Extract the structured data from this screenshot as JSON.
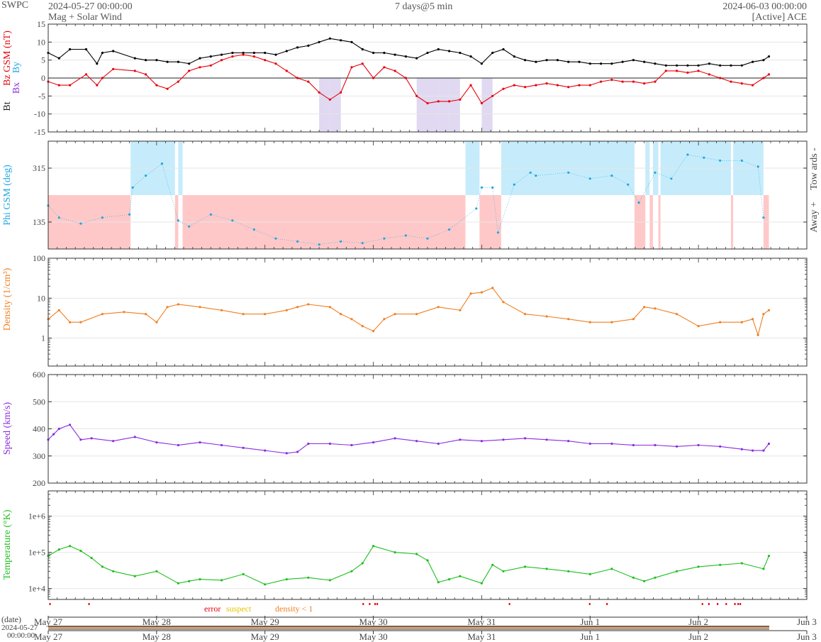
{
  "header": {
    "org": "SWPC",
    "start": "2024-05-27 00:00:00",
    "subtitle": "Mag + Solar Wind",
    "window": "7 days@5 min",
    "end": "2024-06-03 00:00:00",
    "source": "[Active] ACE"
  },
  "colors": {
    "bt": "#000000",
    "bz": "#e8000b",
    "by": "#1ea7e1",
    "bx": "#8a2be2",
    "phi": "#1ea7e1",
    "towards_fill": "#c6ecfb",
    "away_fill": "#ffc8c8",
    "bz_neg_fill": "#ddd5f0",
    "density": "#f07f22",
    "speed": "#8a2be2",
    "temperature": "#1fbf1f",
    "error": "#e8000b",
    "suspect": "#e6c200",
    "density_flag": "#f07f22"
  },
  "flags": {
    "error_label": "error",
    "suspect_label": "suspect",
    "density_label": "density < 1",
    "error_days": [
      0.01,
      0.37,
      2.9,
      2.96,
      3.01,
      3.03,
      4.25,
      4.99,
      5.15,
      6.03,
      6.09,
      6.17,
      6.25,
      6.33,
      6.36,
      6.38
    ]
  },
  "timeline": {
    "label": "(date)",
    "start_date": "2024-05-27",
    "start_time": "00:00:00"
  },
  "chart_data": [
    {
      "type": "line",
      "panel": "mag",
      "ylabel_parts": [
        "Bt",
        "Bz GSM (nT)"
      ],
      "legend": [
        "Bx",
        "By"
      ],
      "ylim": [
        -15,
        15
      ],
      "yticks": [
        -15,
        -10,
        -5,
        0,
        5,
        10,
        15
      ],
      "xlim_days": [
        0,
        7
      ],
      "x_days": [
        0,
        0.1,
        0.2,
        0.35,
        0.45,
        0.5,
        0.6,
        0.8,
        0.9,
        1.0,
        1.1,
        1.2,
        1.3,
        1.4,
        1.5,
        1.6,
        1.7,
        1.8,
        1.9,
        2.0,
        2.1,
        2.2,
        2.3,
        2.4,
        2.5,
        2.6,
        2.7,
        2.8,
        2.9,
        3.0,
        3.1,
        3.2,
        3.3,
        3.4,
        3.5,
        3.6,
        3.7,
        3.8,
        3.9,
        4.0,
        4.1,
        4.2,
        4.3,
        4.4,
        4.5,
        4.6,
        4.7,
        4.8,
        4.9,
        5.0,
        5.1,
        5.2,
        5.3,
        5.4,
        5.5,
        5.6,
        5.7,
        5.8,
        5.9,
        6.0,
        6.1,
        6.2,
        6.3,
        6.4,
        6.5,
        6.6,
        6.65
      ],
      "series": [
        {
          "name": "Bt",
          "values": [
            7,
            5.5,
            8,
            8,
            4,
            7,
            7.5,
            5.5,
            5,
            5,
            4.5,
            4.5,
            4,
            5.5,
            6,
            6.5,
            7,
            7,
            7,
            7,
            6.5,
            7.5,
            8.5,
            9,
            10,
            11,
            10.5,
            10,
            8,
            7,
            7,
            6.5,
            6,
            5.5,
            7,
            8,
            7.5,
            7,
            6,
            4,
            7,
            8,
            6,
            5,
            4.5,
            5,
            5,
            4.5,
            4.5,
            4,
            4,
            4,
            4.5,
            5,
            4.5,
            4,
            3.5,
            3.5,
            3.5,
            3.5,
            4,
            3.5,
            3.5,
            3.5,
            4.5,
            5,
            6
          ]
        },
        {
          "name": "Bz GSM",
          "values": [
            -1,
            -2,
            -2,
            1,
            -2,
            0,
            2.5,
            2,
            1,
            -2,
            -3,
            -1,
            2,
            3,
            3.5,
            5,
            6,
            6.5,
            6,
            5,
            4,
            2,
            0,
            -1,
            -4,
            -6,
            -4,
            3,
            4,
            0,
            3,
            2,
            0,
            -5,
            -7,
            -6.5,
            -6.5,
            -6,
            -2,
            -7,
            -5,
            -3,
            -2,
            -2.5,
            -2,
            -1.5,
            -2,
            -2.5,
            -2,
            -2,
            -1,
            -0.5,
            -1,
            -1,
            -1.5,
            -1,
            2,
            2,
            1.5,
            2,
            1,
            0,
            -1,
            -1.5,
            -2,
            0,
            1
          ]
        }
      ]
    },
    {
      "type": "scatter",
      "panel": "phi",
      "ylabel": "Phi GSM (deg)",
      "right_labels": [
        "Tow ards -",
        "Away +"
      ],
      "ylim": [
        45,
        405
      ],
      "yticks": [
        135,
        315
      ],
      "xlim_days": [
        0,
        7
      ],
      "x_days": [
        0,
        0.1,
        0.3,
        0.5,
        0.75,
        0.78,
        0.9,
        1.05,
        1.2,
        1.3,
        1.5,
        1.7,
        1.9,
        2.1,
        2.3,
        2.5,
        2.7,
        2.9,
        3.1,
        3.3,
        3.5,
        3.7,
        3.95,
        4.0,
        4.1,
        4.15,
        4.3,
        4.45,
        4.5,
        4.8,
        5.0,
        5.2,
        5.35,
        5.45,
        5.6,
        5.75,
        5.9,
        6.05,
        6.2,
        6.4,
        6.55,
        6.6
      ],
      "values": [
        190,
        150,
        130,
        150,
        160,
        250,
        290,
        330,
        140,
        120,
        160,
        140,
        110,
        80,
        70,
        60,
        70,
        65,
        80,
        90,
        80,
        110,
        180,
        250,
        250,
        100,
        260,
        300,
        290,
        300,
        280,
        290,
        260,
        200,
        300,
        280,
        360,
        350,
        340,
        340,
        320,
        150
      ],
      "away_intervals": [
        [
          0,
          0.76
        ],
        [
          1.17,
          1.2
        ],
        [
          1.24,
          3.85
        ],
        [
          3.98,
          4.18
        ],
        [
          5.41,
          5.51
        ],
        [
          5.55,
          5.58
        ],
        [
          5.63,
          5.65
        ],
        [
          6.3,
          6.32
        ],
        [
          6.6,
          6.65
        ]
      ],
      "towards_intervals": [
        [
          0.76,
          1.17
        ],
        [
          1.2,
          1.24
        ],
        [
          3.85,
          3.98
        ],
        [
          4.18,
          5.41
        ],
        [
          5.51,
          5.55
        ],
        [
          5.58,
          5.63
        ],
        [
          5.65,
          6.3
        ],
        [
          6.32,
          6.6
        ]
      ]
    },
    {
      "type": "line",
      "panel": "density",
      "ylabel": "Density (1/cm³)",
      "yscale": "log",
      "ylim": [
        0.2,
        100
      ],
      "yticks": [
        1,
        10,
        100
      ],
      "xlim_days": [
        0,
        7
      ],
      "x_days": [
        0,
        0.1,
        0.2,
        0.3,
        0.5,
        0.7,
        0.9,
        1.0,
        1.1,
        1.2,
        1.4,
        1.6,
        1.8,
        2.0,
        2.2,
        2.3,
        2.4,
        2.6,
        2.7,
        2.8,
        2.9,
        3.0,
        3.1,
        3.2,
        3.4,
        3.6,
        3.8,
        3.9,
        4.0,
        4.1,
        4.2,
        4.4,
        4.6,
        4.8,
        5.0,
        5.2,
        5.4,
        5.5,
        5.6,
        5.8,
        6.0,
        6.2,
        6.4,
        6.5,
        6.55,
        6.6,
        6.65
      ],
      "values": [
        3,
        5,
        2.5,
        2.5,
        4,
        4.5,
        4,
        2.5,
        6,
        7,
        6,
        5,
        4,
        4,
        5,
        6,
        7,
        6,
        4,
        3,
        2,
        1.5,
        3,
        4,
        4,
        6,
        5,
        13,
        14,
        18,
        8,
        4,
        3.5,
        3,
        2.5,
        2.5,
        3,
        6,
        5.5,
        4,
        2,
        2.5,
        2.5,
        3,
        1.2,
        4,
        5
      ]
    },
    {
      "type": "line",
      "panel": "speed",
      "ylabel": "Speed (km/s)",
      "ylim": [
        200,
        600
      ],
      "yticks": [
        200,
        300,
        400,
        500,
        600
      ],
      "xlim_days": [
        0,
        7
      ],
      "x_days": [
        0,
        0.05,
        0.1,
        0.2,
        0.3,
        0.4,
        0.6,
        0.8,
        1.0,
        1.2,
        1.4,
        1.6,
        1.8,
        2.0,
        2.2,
        2.3,
        2.4,
        2.6,
        2.8,
        3.0,
        3.2,
        3.4,
        3.6,
        3.8,
        4.0,
        4.2,
        4.4,
        4.6,
        4.8,
        5.0,
        5.2,
        5.4,
        5.6,
        5.8,
        6.0,
        6.2,
        6.4,
        6.5,
        6.6,
        6.65
      ],
      "values": [
        360,
        380,
        400,
        415,
        360,
        365,
        355,
        370,
        350,
        340,
        350,
        340,
        330,
        320,
        310,
        315,
        345,
        345,
        340,
        350,
        365,
        355,
        345,
        360,
        355,
        360,
        365,
        360,
        355,
        345,
        345,
        340,
        340,
        335,
        340,
        335,
        325,
        320,
        320,
        345
      ]
    },
    {
      "type": "line",
      "panel": "temperature",
      "ylabel": "Temperature (°K)",
      "yscale": "log",
      "ylim": [
        5000,
        5000000
      ],
      "yticks": [
        10000,
        100000,
        1000000
      ],
      "ytick_labels": [
        "1e+4",
        "1e+5",
        "1e+6"
      ],
      "xlim_days": [
        0,
        7
      ],
      "x_days": [
        0,
        0.1,
        0.2,
        0.3,
        0.4,
        0.5,
        0.6,
        0.8,
        1.0,
        1.2,
        1.3,
        1.4,
        1.6,
        1.8,
        2.0,
        2.2,
        2.4,
        2.6,
        2.8,
        2.9,
        3.0,
        3.2,
        3.4,
        3.5,
        3.6,
        3.7,
        3.8,
        4.0,
        4.1,
        4.2,
        4.4,
        4.6,
        4.8,
        5.0,
        5.2,
        5.4,
        5.5,
        5.6,
        5.8,
        6.0,
        6.2,
        6.4,
        6.6,
        6.65
      ],
      "values": [
        80000,
        120000,
        150000,
        110000,
        70000,
        40000,
        30000,
        22000,
        30000,
        14000,
        16000,
        18000,
        17000,
        25000,
        13000,
        18000,
        20000,
        17000,
        30000,
        50000,
        150000,
        100000,
        90000,
        60000,
        15000,
        18000,
        22000,
        14000,
        45000,
        30000,
        40000,
        35000,
        30000,
        25000,
        35000,
        20000,
        16000,
        20000,
        30000,
        40000,
        45000,
        50000,
        35000,
        80000
      ]
    }
  ],
  "x_axis": {
    "tick_labels": [
      "May 27",
      "May 28",
      "May 29",
      "May 30",
      "May 31",
      "Jun 1",
      "Jun 2",
      "Jun 3"
    ],
    "tick_days": [
      0,
      1,
      2,
      3,
      4,
      5,
      6,
      7
    ]
  }
}
